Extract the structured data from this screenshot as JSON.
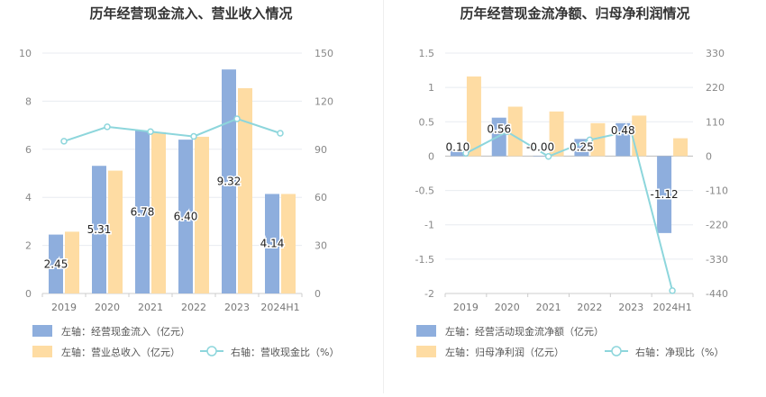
{
  "chart_data": [
    {
      "type": "bar",
      "title": "历年经营现金流入、营业收入情况",
      "categories": [
        "2019",
        "2020",
        "2021",
        "2022",
        "2023",
        "2024H1"
      ],
      "left_axis": {
        "min": 0,
        "max": 10,
        "ticks": [
          "0",
          "2",
          "4",
          "6",
          "8",
          "10"
        ]
      },
      "right_axis": {
        "min": 0,
        "max": 150,
        "ticks": [
          "0",
          "30",
          "60",
          "90",
          "120",
          "150"
        ]
      },
      "series": [
        {
          "name": "左轴：经营现金流入（亿元）",
          "type": "bar",
          "axis": "left",
          "color": "#8eaedd",
          "values": [
            2.45,
            5.31,
            6.78,
            6.4,
            9.32,
            4.14
          ],
          "labels": [
            "2.45",
            "5.31",
            "6.78",
            "6.40",
            "9.32",
            "4.14"
          ]
        },
        {
          "name": "左轴：营业总收入（亿元）",
          "type": "bar",
          "axis": "left",
          "color": "#fedca3",
          "values": [
            2.57,
            5.11,
            6.71,
            6.52,
            8.54,
            4.14
          ]
        },
        {
          "name": "右轴：营收现金比（%）",
          "type": "line",
          "axis": "right",
          "color": "#8dd6dc",
          "values": [
            95,
            104,
            101,
            98,
            109,
            100
          ]
        }
      ],
      "grid": true,
      "legend_position": "bottom-left"
    },
    {
      "type": "bar",
      "title": "历年经营现金流净额、归母净利润情况",
      "categories": [
        "2019",
        "2020",
        "2021",
        "2022",
        "2023",
        "2024H1"
      ],
      "left_axis": {
        "min": -2,
        "max": 1.5,
        "ticks": [
          "-2",
          "-1.5",
          "-1",
          "-0.5",
          "0",
          "0.5",
          "1",
          "1.5"
        ]
      },
      "right_axis": {
        "min": -440,
        "max": 330,
        "ticks": [
          "-440",
          "-330",
          "-220",
          "-110",
          "0",
          "110",
          "220",
          "330"
        ]
      },
      "series": [
        {
          "name": "左轴：经营活动现金流净额（亿元）",
          "type": "bar",
          "axis": "left",
          "color": "#8eaedd",
          "values": [
            0.1,
            0.56,
            -0.0,
            0.25,
            0.48,
            -1.12
          ],
          "labels": [
            "0.10",
            "0.56",
            "-0.00",
            "0.25",
            "0.48",
            "-1.12"
          ]
        },
        {
          "name": "左轴：归母净利润（亿元）",
          "type": "bar",
          "axis": "left",
          "color": "#fedca3",
          "values": [
            1.16,
            0.72,
            0.65,
            0.48,
            0.59,
            0.26
          ]
        },
        {
          "name": "右轴：净现比（%）",
          "type": "line",
          "axis": "right",
          "color": "#8dd6dc",
          "values": [
            9,
            78,
            -1,
            52,
            81,
            -431
          ]
        }
      ],
      "grid": true,
      "legend_position": "bottom-left"
    }
  ]
}
